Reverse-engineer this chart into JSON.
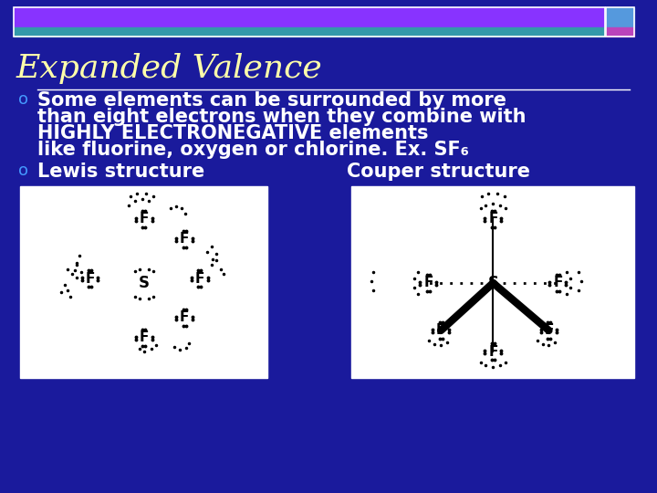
{
  "bg_color": "#1a1a9c",
  "title": "Expanded Valence",
  "title_color": "#ffffaa",
  "title_fontsize": 26,
  "header_bar1_color": "#8833ff",
  "header_bar2_color": "#3399aa",
  "bullet_color": "#4499ff",
  "text_color": "#ffffff",
  "body_lines": [
    "Some elements can be surrounded by more",
    "than eight electrons when they combine with",
    "HIGHLY ELECTRONEGATIVE elements",
    "like fluorine, oxygen or chlorine. Ex. SF₆"
  ],
  "bullet2_text": "Lewis structure",
  "couper_text": "Couper structure",
  "body_fontsize": 15,
  "image_bg": "#ffffff",
  "sq1_color": "#5599dd",
  "sq2_color": "#bb44bb"
}
